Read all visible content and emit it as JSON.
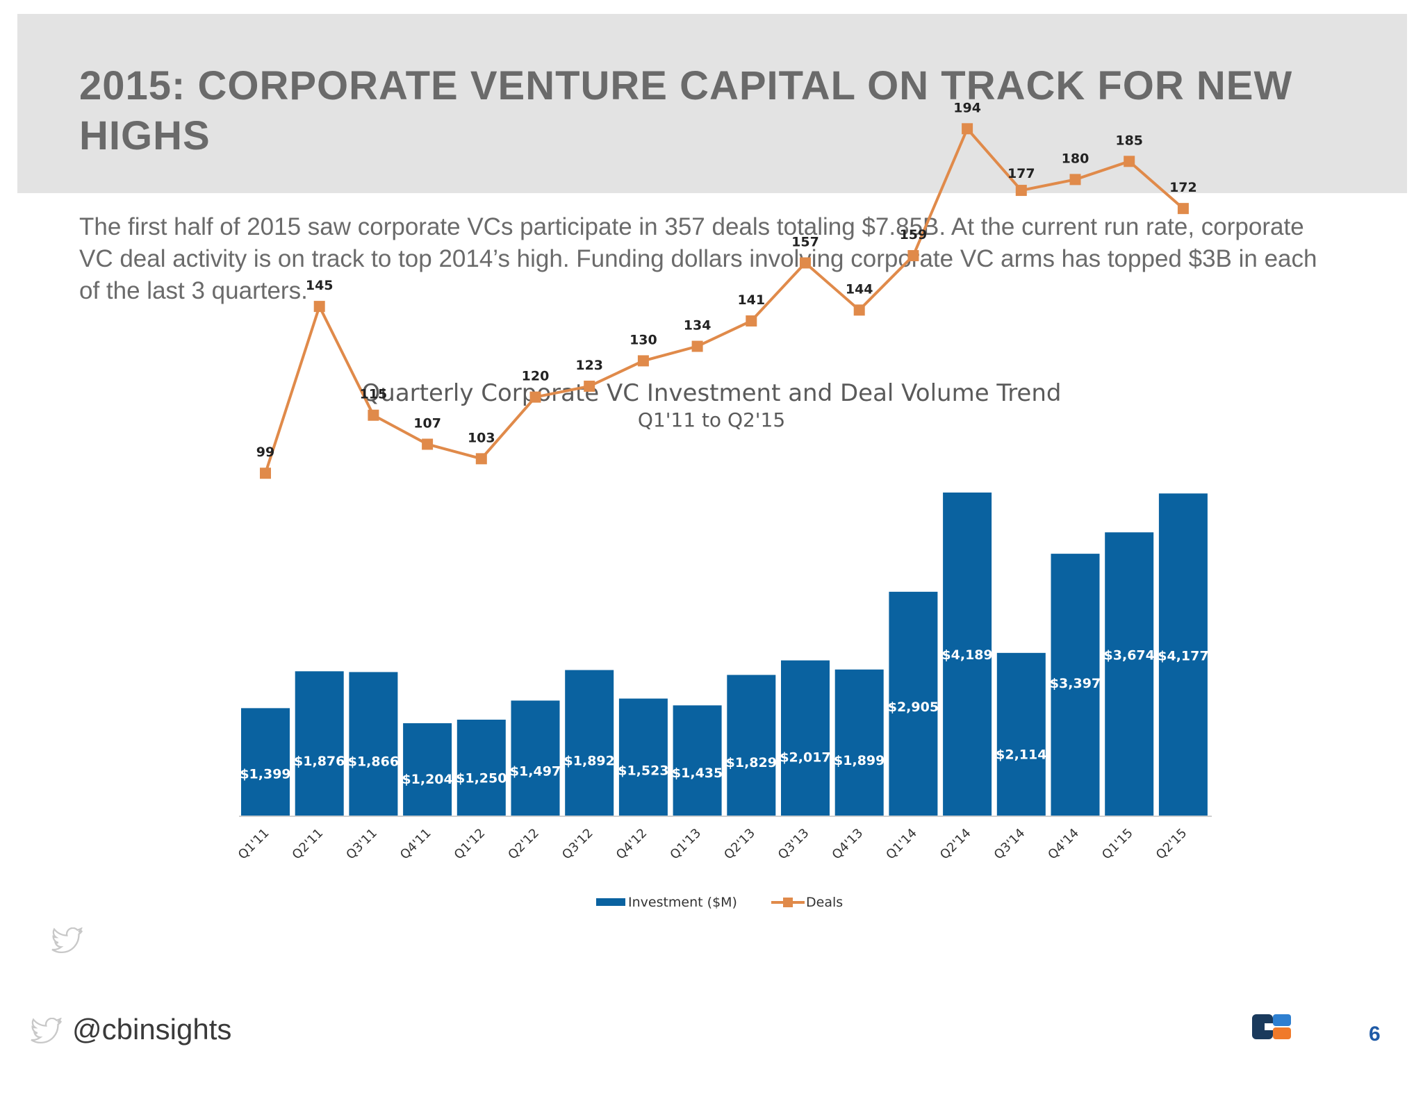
{
  "slide": {
    "title": "2015: CORPORATE VENTURE CAPITAL ON TRACK FOR NEW HIGHS",
    "intro": "The first half of 2015 saw corporate VCs participate in 357 deals totaling $7.85B. At the current run rate, corporate VC deal activity is on track to top 2014’s high. Funding dollars involving corporate VC arms has topped $3B in each of the last 3 quarters.",
    "handle": "@cbinsights",
    "page_number": "6"
  },
  "icons": [
    "twitter-bird-icon",
    "cb-insights-logo-icon"
  ],
  "colors": {
    "bar": "#0a62a0",
    "line": "#e08a4a",
    "accent_page_number": "#1f5aa6"
  },
  "chart_data": {
    "type": "bar",
    "title": "Quarterly Corporate VC Investment and Deal Volume Trend",
    "subtitle": "Q1'11 to Q2'15",
    "categories": [
      "Q1'11",
      "Q2'11",
      "Q3'11",
      "Q4'11",
      "Q1'12",
      "Q2'12",
      "Q3'12",
      "Q4'12",
      "Q1'13",
      "Q2'13",
      "Q3'13",
      "Q4'13",
      "Q1'14",
      "Q2'14",
      "Q3'14",
      "Q4'14",
      "Q1'15",
      "Q2'15"
    ],
    "series": [
      {
        "name": "Investment ($M)",
        "type": "bar",
        "values": [
          1399,
          1876,
          1866,
          1204,
          1250,
          1497,
          1892,
          1523,
          1435,
          1829,
          2017,
          1899,
          2905,
          4189,
          2114,
          3397,
          3674,
          4177
        ],
        "labels": [
          "$1,399",
          "$1,876",
          "$1,866",
          "$1,204",
          "$1,250",
          "$1,497",
          "$1,892",
          "$1,523",
          "$1,435",
          "$1,829",
          "$2,017",
          "$1,899",
          "$2,905",
          "$4,189",
          "$2,114",
          "$3,397",
          "$3,674",
          "$4,177"
        ]
      },
      {
        "name": "Deals",
        "type": "line",
        "values": [
          99,
          145,
          115,
          107,
          103,
          120,
          123,
          130,
          134,
          141,
          157,
          144,
          159,
          194,
          177,
          180,
          185,
          172
        ],
        "labels": [
          "99",
          "145",
          "115",
          "107",
          "103",
          "120",
          "123",
          "130",
          "134",
          "141",
          "157",
          "144",
          "159",
          "194",
          "177",
          "180",
          "185",
          "172"
        ]
      }
    ],
    "legend_position": "bottom",
    "grid": false
  }
}
